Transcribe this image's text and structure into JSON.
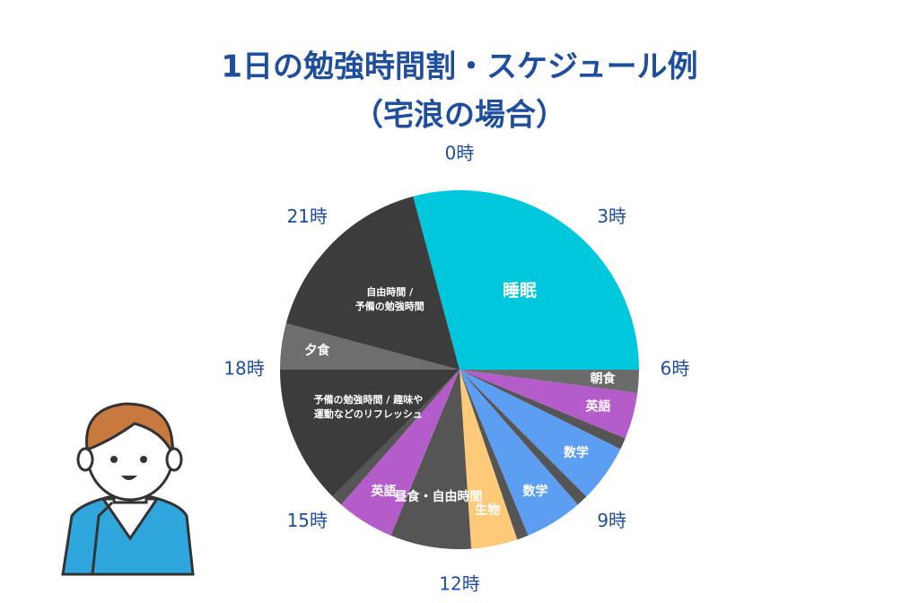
{
  "chart_data": {
    "type": "pie",
    "title": "1日の勉強時間割・スケジュール例",
    "subtitle": "（宅浪の場合）",
    "hour_labels": [
      "0時",
      "3時",
      "6時",
      "9時",
      "12時",
      "15時",
      "18時",
      "21時"
    ],
    "categories": [
      "睡眠",
      "朝食",
      "英語",
      null,
      "数学",
      null,
      "数学",
      null,
      "生物",
      "昼食・自由時間",
      "英語",
      null,
      [
        "予備の勉強時間 / 趣味や",
        "運動などのリフレッシュ"
      ],
      "夕食",
      [
        "自由時間 /",
        "予備の勉強時間"
      ]
    ],
    "values": [
      7,
      0.5,
      1,
      0.25,
      1.25,
      0.25,
      1.25,
      0.25,
      1,
      1.75,
      1.25,
      0.25,
      3,
      1,
      4
    ],
    "colors": [
      "#00c8dc",
      "#6b6b6b",
      "#b55ccb",
      "#555555",
      "#5c9ef2",
      "#555555",
      "#5c9ef2",
      "#555555",
      "#fcca78",
      "#555555",
      "#b55ccb",
      "#555555",
      "#3c3c3c",
      "#6e6e6e",
      "#3c3c3c"
    ]
  }
}
